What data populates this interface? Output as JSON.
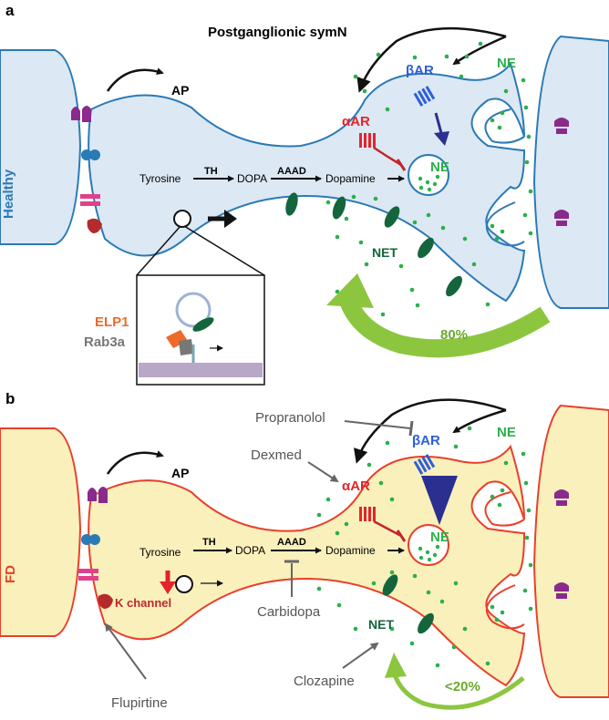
{
  "panel_a": {
    "letter": "a",
    "title": "Postganglionic symN",
    "side_label": "Healthy",
    "ap_label": "AP",
    "pathway": {
      "tyrosine": "Tyrosine",
      "th": "TH",
      "dopa": "DOPA",
      "aaad": "AAAD",
      "dopamine": "Dopamine"
    },
    "receptors": {
      "beta": "βAR",
      "alpha": "αAR"
    },
    "ne_labels": {
      "vesicle": "NE",
      "cleft": "NE"
    },
    "net_label": "NET",
    "reuptake_percent": "80%",
    "inset": {
      "elp1": "ELP1",
      "rab3a": "Rab3a"
    }
  },
  "panel_b": {
    "letter": "b",
    "side_label": "FD",
    "ap_label": "AP",
    "pathway": {
      "tyrosine": "Tyrosine",
      "th": "TH",
      "dopa": "DOPA",
      "aaad": "AAAD",
      "dopamine": "Dopamine"
    },
    "receptors": {
      "beta": "βAR",
      "alpha": "αAR"
    },
    "ne_labels": {
      "vesicle": "NE",
      "cleft": "NE"
    },
    "net_label": "NET",
    "k_channel": "K channel",
    "reuptake_percent": "<20%",
    "drugs": {
      "propranolol": "Propranolol",
      "dexmed": "Dexmed",
      "carbidopa": "Carbidopa",
      "clozapine": "Clozapine",
      "flupirtine": "Flupirtine"
    }
  },
  "colors": {
    "healthy_outline": "#2a7ab5",
    "healthy_fill": "#dce8f4",
    "fd_outline": "#e8402a",
    "fd_fill": "#faf0bc",
    "ne_green": "#2bb04a",
    "net_dark_green": "#14653c",
    "beta_blue": "#2d5fd6",
    "alpha_red": "#e3242b",
    "elp1_orange": "#ee6a2a",
    "reuptake_green": "#8cc63f",
    "receptor_purple": "#8a2a8c"
  }
}
